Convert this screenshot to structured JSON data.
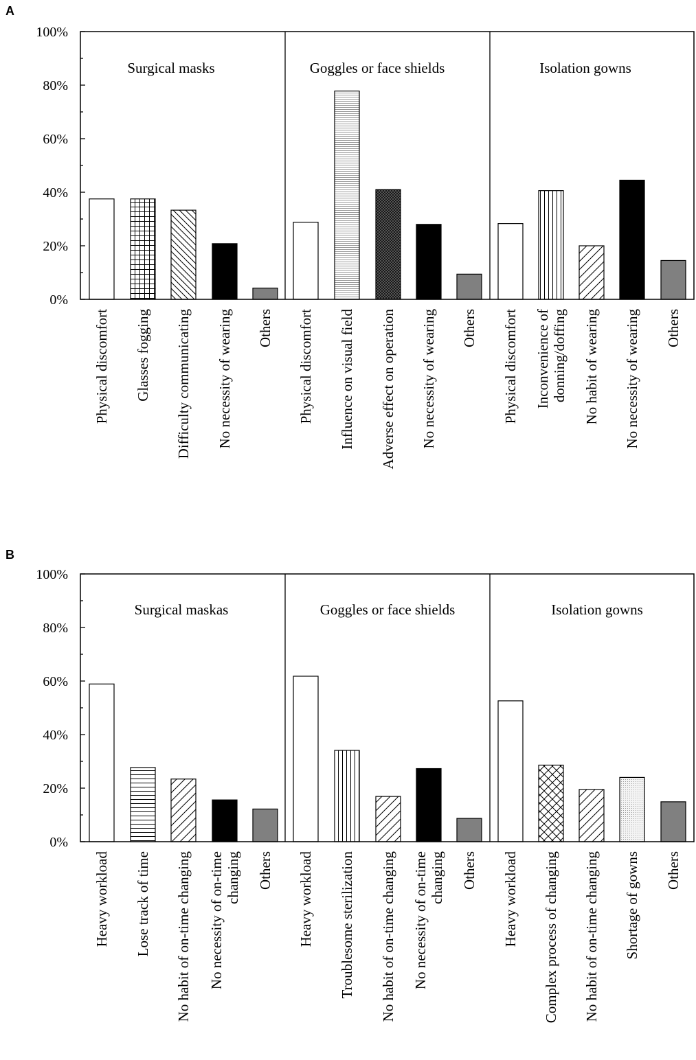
{
  "chart_data": [
    {
      "panel": "A",
      "type": "bar",
      "ylim": [
        0,
        100
      ],
      "yticks": [
        "0%",
        "20%",
        "40%",
        "60%",
        "80%",
        "100%"
      ],
      "groups": [
        {
          "title": "Surgical masks",
          "bars": [
            {
              "label": [
                "Physical discomfort"
              ],
              "value": 37.5,
              "pattern": "white"
            },
            {
              "label": [
                "Glasses fogging"
              ],
              "value": 37.5,
              "pattern": "grid"
            },
            {
              "label": [
                "Difficulty communicating"
              ],
              "value": 33.3,
              "pattern": "backslash"
            },
            {
              "label": [
                "No necessity of wearing"
              ],
              "value": 20.8,
              "pattern": "black"
            },
            {
              "label": [
                "Others"
              ],
              "value": 4.2,
              "pattern": "gray"
            }
          ]
        },
        {
          "title": "Goggles or face shields",
          "bars": [
            {
              "label": [
                "Physical discomfort"
              ],
              "value": 28.8,
              "pattern": "white"
            },
            {
              "label": [
                "Influence on visual field"
              ],
              "value": 77.8,
              "pattern": "hlines-fine"
            },
            {
              "label": [
                "Adverse effect on operation"
              ],
              "value": 41.0,
              "pattern": "crosshatch-dense"
            },
            {
              "label": [
                "No necessity of wearing"
              ],
              "value": 28.0,
              "pattern": "black"
            },
            {
              "label": [
                "Others"
              ],
              "value": 9.4,
              "pattern": "gray"
            }
          ]
        },
        {
          "title": "Isolation gowns",
          "bars": [
            {
              "label": [
                "Physical discomfort"
              ],
              "value": 28.3,
              "pattern": "white"
            },
            {
              "label": [
                "Inconvenience of",
                "donning/doffing"
              ],
              "value": 40.6,
              "pattern": "vlines"
            },
            {
              "label": [
                "No habit of wearing"
              ],
              "value": 20.0,
              "pattern": "slash"
            },
            {
              "label": [
                "No necessity of wearing"
              ],
              "value": 44.5,
              "pattern": "black"
            },
            {
              "label": [
                "Others"
              ],
              "value": 14.5,
              "pattern": "gray"
            }
          ]
        }
      ]
    },
    {
      "panel": "B",
      "type": "bar",
      "ylim": [
        0,
        100
      ],
      "yticks": [
        "0%",
        "20%",
        "40%",
        "60%",
        "80%",
        "100%"
      ],
      "groups": [
        {
          "title": "Surgical maskas",
          "bars": [
            {
              "label": [
                "Heavy workload"
              ],
              "value": 58.9,
              "pattern": "white"
            },
            {
              "label": [
                "Lose track of time"
              ],
              "value": 27.7,
              "pattern": "hlines"
            },
            {
              "label": [
                "No habit of on-time changing"
              ],
              "value": 23.4,
              "pattern": "slash"
            },
            {
              "label": [
                "No necessity of on-time",
                "changing"
              ],
              "value": 15.6,
              "pattern": "black"
            },
            {
              "label": [
                "Others"
              ],
              "value": 12.2,
              "pattern": "gray"
            }
          ]
        },
        {
          "title": "Goggles or face shields",
          "bars": [
            {
              "label": [
                "Heavy workload"
              ],
              "value": 61.8,
              "pattern": "white"
            },
            {
              "label": [
                "Troublesome sterilization"
              ],
              "value": 34.1,
              "pattern": "vlines"
            },
            {
              "label": [
                "No habit of on-time changing"
              ],
              "value": 16.9,
              "pattern": "slash"
            },
            {
              "label": [
                "No necessity of on-time",
                "changing"
              ],
              "value": 27.3,
              "pattern": "black"
            },
            {
              "label": [
                "Others"
              ],
              "value": 8.7,
              "pattern": "gray"
            }
          ]
        },
        {
          "title": "Isolation gowns",
          "bars": [
            {
              "label": [
                "Heavy workload"
              ],
              "value": 52.6,
              "pattern": "white"
            },
            {
              "label": [
                "Complex process of changing"
              ],
              "value": 28.6,
              "pattern": "crosshatch"
            },
            {
              "label": [
                "No habit of on-time changing"
              ],
              "value": 19.5,
              "pattern": "slash"
            },
            {
              "label": [
                "Shortage of gowns"
              ],
              "value": 24.0,
              "pattern": "dots"
            },
            {
              "label": [
                "Others"
              ],
              "value": 14.9,
              "pattern": "gray"
            }
          ]
        }
      ]
    }
  ]
}
